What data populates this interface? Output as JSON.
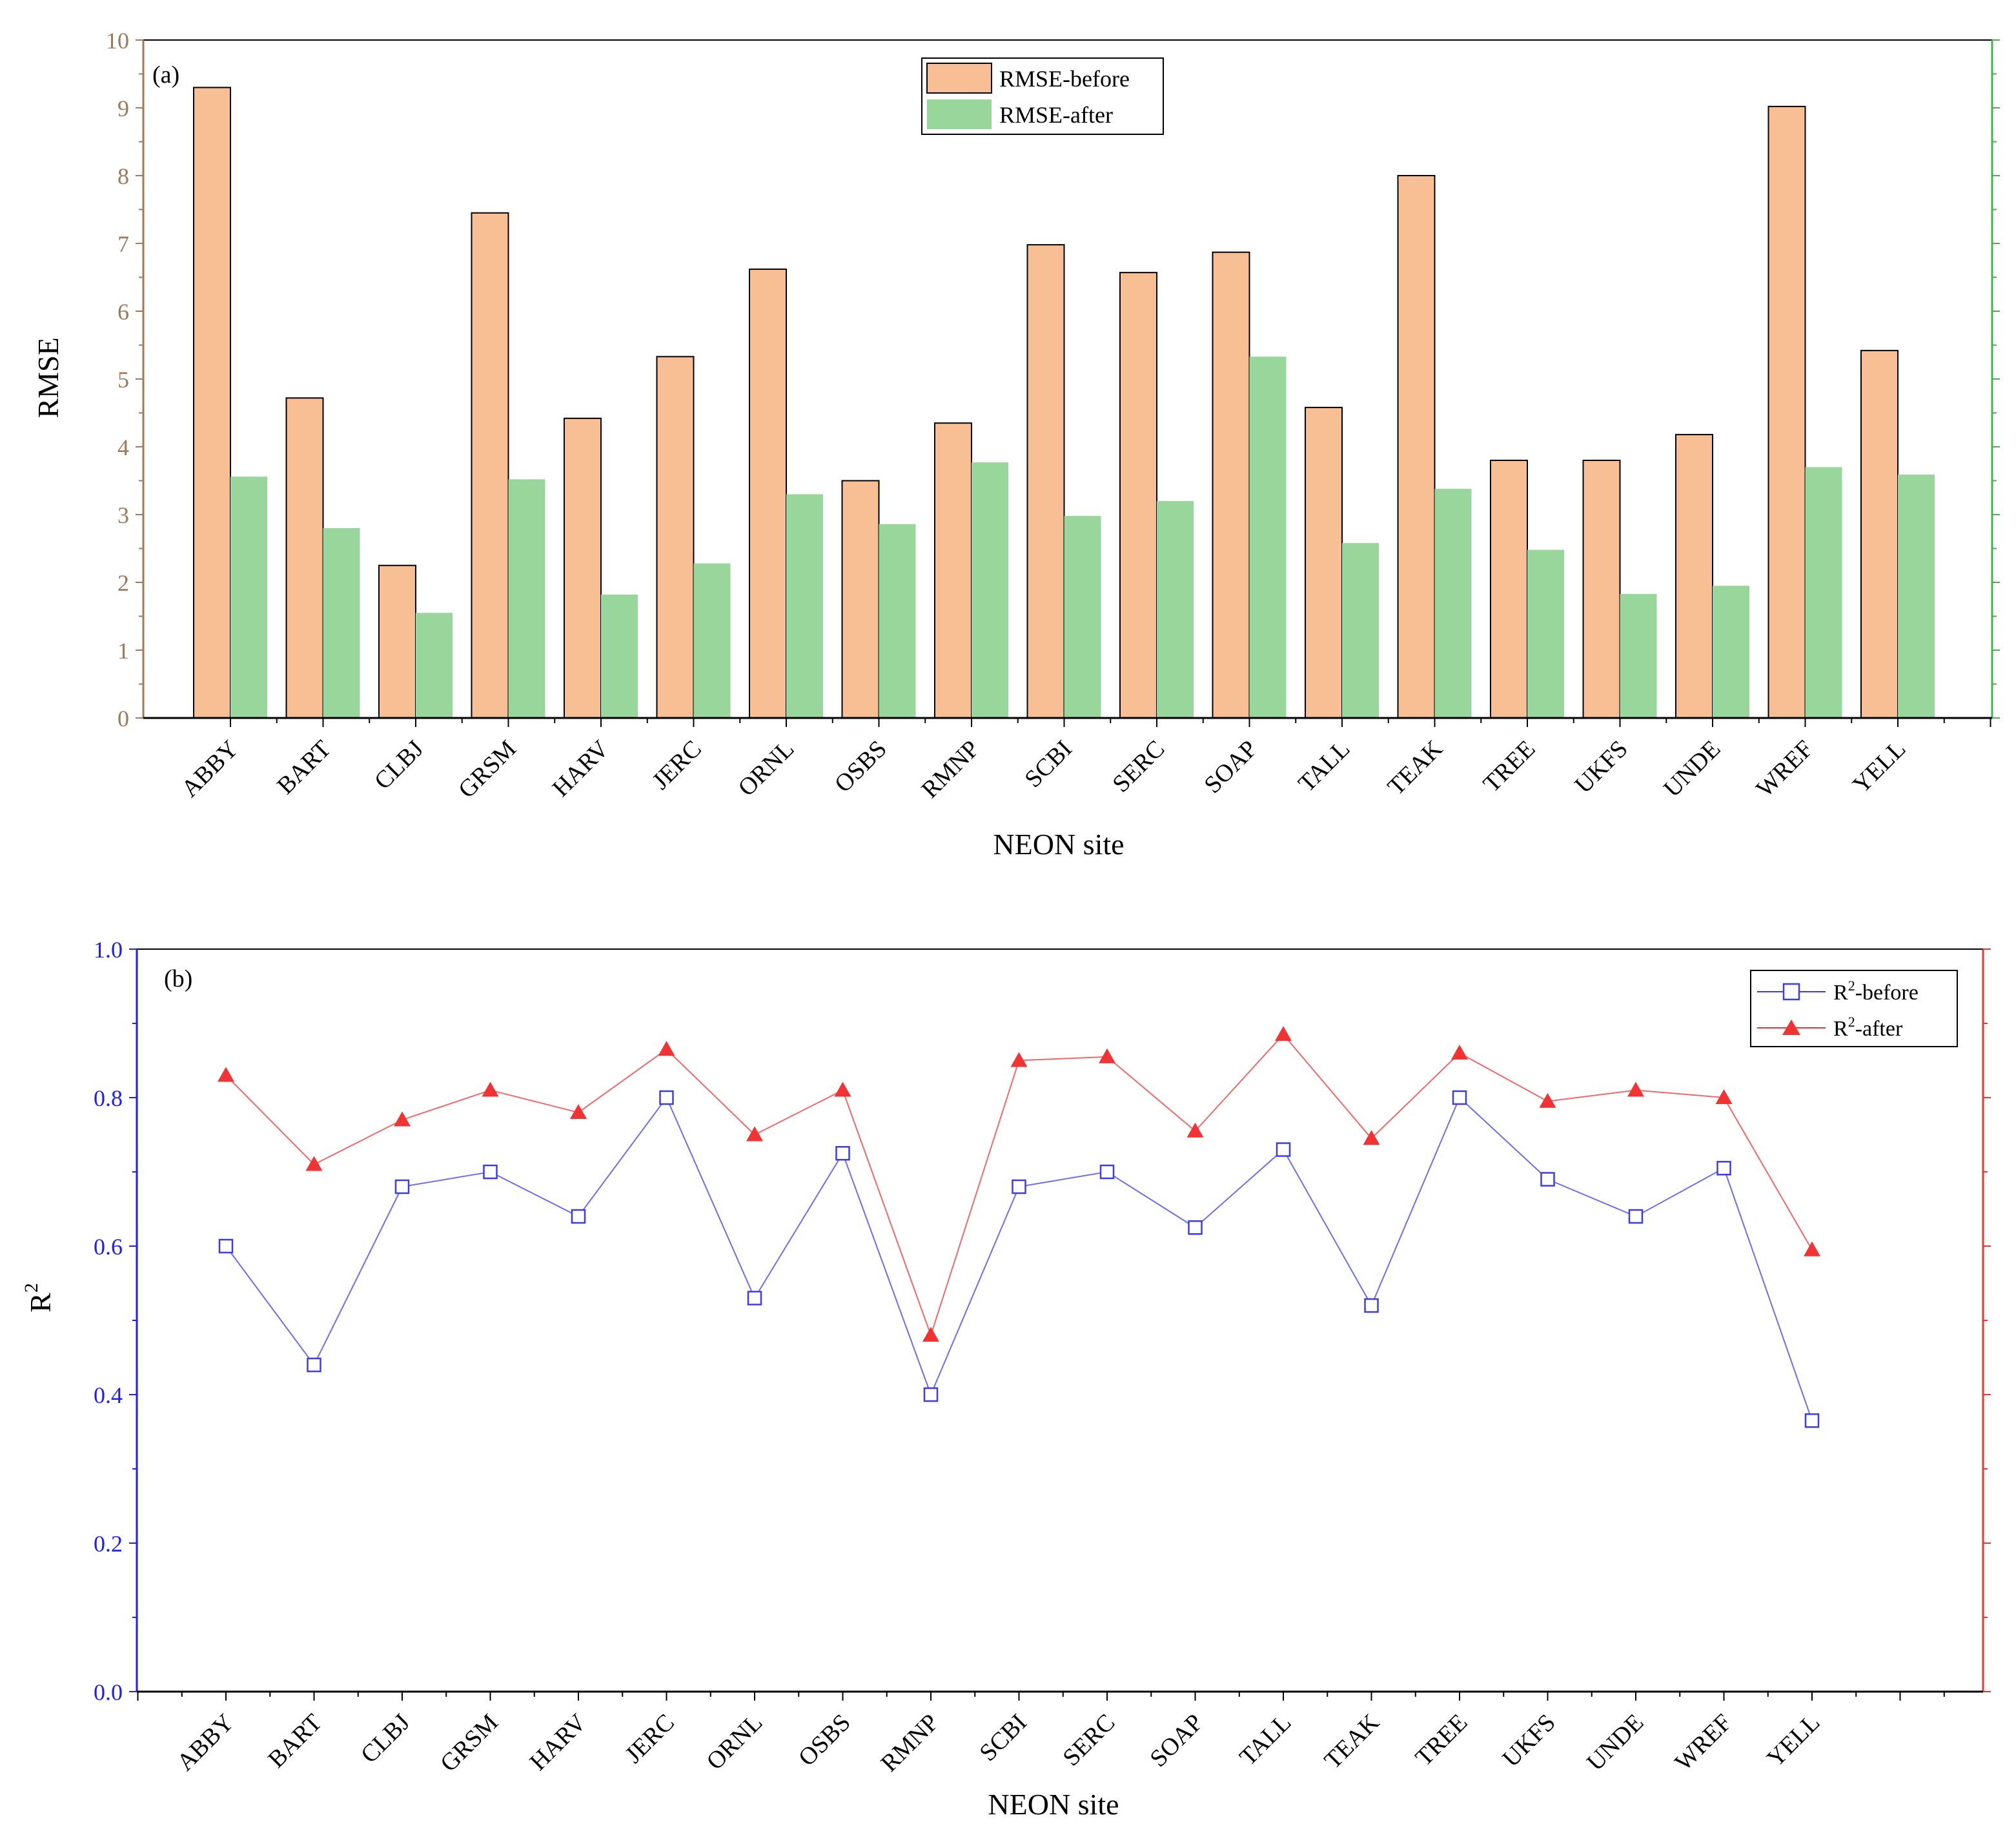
{
  "chart_data": [
    {
      "type": "bar",
      "panel_label": "(a)",
      "title": "",
      "xlabel": "NEON site",
      "ylabel": "RMSE",
      "ylim": [
        0,
        10
      ],
      "yticks": [
        "0",
        "1",
        "2",
        "3",
        "4",
        "5",
        "6",
        "7",
        "8",
        "9",
        "10"
      ],
      "legend_position": "top-center",
      "categories": [
        "ABBY",
        "BART",
        "CLBJ",
        "GRSM",
        "HARV",
        "JERC",
        "ORNL",
        "OSBS",
        "RMNP",
        "SCBI",
        "SERC",
        "SOAP",
        "TALL",
        "TEAK",
        "TREE",
        "UKFS",
        "UNDE",
        "WREF",
        "YELL"
      ],
      "series": [
        {
          "name": "RMSE-before",
          "color": "#F8BE94",
          "values": [
            9.3,
            4.72,
            2.25,
            7.45,
            4.42,
            5.33,
            6.62,
            3.5,
            4.35,
            6.98,
            6.57,
            6.87,
            4.58,
            8.0,
            3.8,
            3.8,
            4.18,
            9.02,
            5.42
          ]
        },
        {
          "name": "RMSE-after",
          "color": "#99D69B",
          "values": [
            3.56,
            2.8,
            1.55,
            3.52,
            1.82,
            2.28,
            3.3,
            2.86,
            3.77,
            2.98,
            3.2,
            5.33,
            2.58,
            3.38,
            2.48,
            1.83,
            1.95,
            3.7,
            3.59
          ]
        }
      ],
      "colors": {
        "left_axis": "#A0785A",
        "right_axis": "#4CAF50",
        "bar_edge": "#000000"
      }
    },
    {
      "type": "line",
      "panel_label": "(b)",
      "title": "",
      "xlabel": "NEON site",
      "ylabel_base": "R",
      "ylabel_sup": "2",
      "ylim": [
        0.0,
        1.0
      ],
      "yticks": [
        "0.0",
        "0.2",
        "0.4",
        "0.6",
        "0.8",
        "1.0"
      ],
      "legend_position": "top-right",
      "categories": [
        "ABBY",
        "BART",
        "CLBJ",
        "GRSM",
        "HARV",
        "JERC",
        "ORNL",
        "OSBS",
        "RMNP",
        "SCBI",
        "SERC",
        "SOAP",
        "TALL",
        "TEAK",
        "TREE",
        "UKFS",
        "UNDE",
        "WREF",
        "YELL"
      ],
      "series": [
        {
          "name_base": "R",
          "name_sup": "2",
          "name_rest": "-before",
          "marker": "open-square",
          "color": "#3B3BF0",
          "values": [
            0.6,
            0.44,
            0.68,
            0.7,
            0.64,
            0.8,
            0.53,
            0.725,
            0.4,
            0.68,
            0.7,
            0.625,
            0.73,
            0.52,
            0.8,
            0.69,
            0.64,
            0.705,
            0.365
          ]
        },
        {
          "name_base": "R",
          "name_sup": "2",
          "name_rest": "-after",
          "marker": "filled-triangle",
          "color": "#F03434",
          "values": [
            0.83,
            0.71,
            0.77,
            0.81,
            0.78,
            0.865,
            0.75,
            0.81,
            0.48,
            0.85,
            0.855,
            0.755,
            0.885,
            0.745,
            0.86,
            0.795,
            0.81,
            0.8,
            0.595
          ]
        }
      ],
      "colors": {
        "left_axis": "#1E1EF0",
        "right_axis": "#F03434"
      }
    }
  ]
}
